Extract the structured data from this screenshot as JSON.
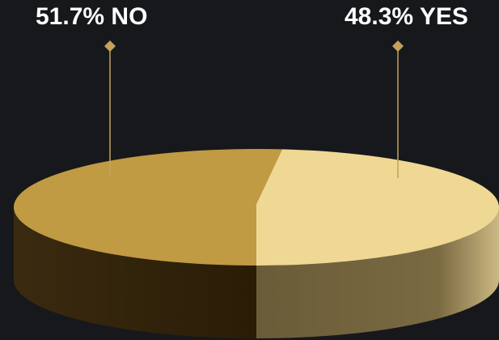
{
  "chart_data": {
    "type": "pie",
    "style": "3d",
    "slices": [
      {
        "label": "NO",
        "value": 51.7,
        "color": "#c19a44",
        "side_dark": "#2a1c06",
        "side_light": "#3a2a10"
      },
      {
        "label": "YES",
        "value": 48.3,
        "color": "#efd894",
        "side_dark": "#6a5c38",
        "side_light": "#cbb882"
      }
    ],
    "data_labels": [
      {
        "slice": "NO",
        "text": "51.7% NO"
      },
      {
        "slice": "YES",
        "text": "48.3% YES"
      }
    ],
    "leader_color": "#c4a15c"
  }
}
